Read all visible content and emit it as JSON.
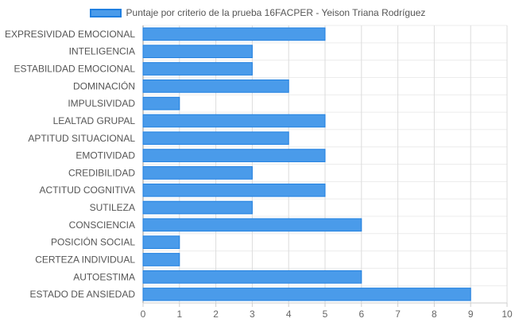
{
  "chart_data": {
    "type": "bar",
    "orientation": "horizontal",
    "series": [
      {
        "name": "Puntaje por criterio de la prueba 16FACPER - Yeison Triana Rodríguez",
        "values": [
          5,
          3,
          3,
          4,
          1,
          5,
          4,
          5,
          3,
          5,
          3,
          6,
          1,
          1,
          6,
          9
        ]
      }
    ],
    "categories": [
      "EXPRESIVIDAD EMOCIONAL",
      "INTELIGENCIA",
      "ESTABILIDAD EMOCIONAL",
      "DOMINACIÓN",
      "IMPULSIVIDAD",
      "LEALTAD GRUPAL",
      "APTITUD SITUACIONAL",
      "EMOTIVIDAD",
      "CREDIBILIDAD",
      "ACTITUD COGNITIVA",
      "SUTILEZA",
      "CONSCIENCIA",
      "POSICIÓN SOCIAL",
      "CERTEZA INDIVIDUAL",
      "AUTOESTIMA",
      "ESTADO DE ANSIEDAD"
    ],
    "xlim": [
      0,
      10
    ],
    "xticks": [
      "0",
      "1",
      "2",
      "3",
      "4",
      "5",
      "6",
      "7",
      "8",
      "9",
      "10"
    ],
    "grid": true,
    "legend_position": "top-center",
    "colors": {
      "bar_fill": "#4a9bea",
      "bar_border": "#1f7fe0",
      "grid": "#e3e3e3",
      "axis": "#999999"
    }
  }
}
